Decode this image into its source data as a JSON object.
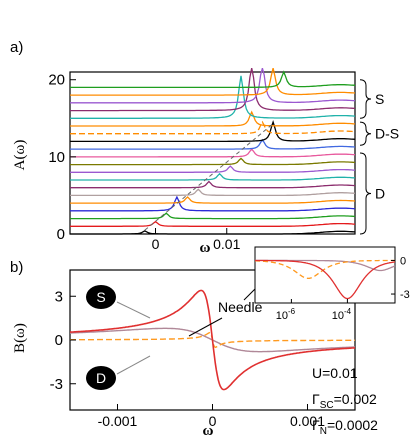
{
  "chart_data": [
    {
      "type": "line",
      "panel_label": "a)",
      "xlabel": "ω",
      "ylabel": "A(ω)",
      "xlim": [
        -0.012,
        0.028
      ],
      "ylim": [
        0,
        21
      ],
      "x_ticks": [
        {
          "value": 0,
          "label": "0"
        },
        {
          "value": 0.01,
          "label": "0.01"
        }
      ],
      "y_ticks": [
        {
          "value": 0,
          "label": "0"
        },
        {
          "value": 10,
          "label": "10"
        },
        {
          "value": 20,
          "label": "20"
        }
      ],
      "grid": false,
      "brace_groups": [
        {
          "label": "S",
          "y_range": [
            15,
            20
          ]
        },
        {
          "label": "D-S",
          "y_range": [
            11.5,
            14.5
          ]
        },
        {
          "label": "D",
          "y_range": [
            0,
            10.5
          ]
        }
      ],
      "series": [
        {
          "offset": 0,
          "peak_x": -0.0015,
          "height": 0.4,
          "color": "#000000"
        },
        {
          "offset": 1,
          "peak_x": 0.0,
          "height": 0.6,
          "color": "#e41a1c"
        },
        {
          "offset": 2,
          "peak_x": 0.0015,
          "height": 0.7,
          "color": "#1f9e1f"
        },
        {
          "offset": 3,
          "peak_x": 0.003,
          "height": 1.8,
          "color": "#2b2bd6"
        },
        {
          "offset": 4,
          "peak_x": 0.0045,
          "height": 0.8,
          "color": "#ff8c00"
        },
        {
          "offset": 5,
          "peak_x": 0.006,
          "height": 0.8,
          "color": "#b0a0a0"
        },
        {
          "offset": 6,
          "peak_x": 0.0075,
          "height": 0.8,
          "color": "#8c2d6e"
        },
        {
          "offset": 7,
          "peak_x": 0.009,
          "height": 0.8,
          "color": "#20b2aa"
        },
        {
          "offset": 8,
          "peak_x": 0.0105,
          "height": 0.8,
          "color": "#9b59d0"
        },
        {
          "offset": 9,
          "peak_x": 0.012,
          "height": 0.8,
          "color": "#7a7a00"
        },
        {
          "offset": 10,
          "peak_x": 0.0135,
          "height": 1.0,
          "color": "#e85a9e"
        },
        {
          "offset": 11,
          "peak_x": 0.015,
          "height": 1.2,
          "color": "#4169e1"
        },
        {
          "offset": 12,
          "peak_x": 0.0165,
          "height": 2.5,
          "color": "#000000"
        },
        {
          "offset": 13,
          "peak_x": 0.015,
          "height": 1.5,
          "color": "#ff8c00",
          "dashed": true
        },
        {
          "offset": 14,
          "peak_x": 0.0135,
          "height": 1.8,
          "color": "#ff8c00"
        },
        {
          "offset": 15,
          "peak_x": 0.012,
          "height": 5.5,
          "color": "#20b2aa"
        },
        {
          "offset": 16,
          "peak_x": 0.0135,
          "height": 6.0,
          "color": "#8c2d6e"
        },
        {
          "offset": 17,
          "peak_x": 0.015,
          "height": 5.0,
          "color": "#9b59d0"
        },
        {
          "offset": 18,
          "peak_x": 0.0165,
          "height": 3.5,
          "color": "#ff8c00"
        },
        {
          "offset": 19,
          "peak_x": 0.018,
          "height": 2.0,
          "color": "#1f9e1f"
        }
      ]
    },
    {
      "type": "line",
      "panel_label": "b)",
      "xlabel": "ω",
      "ylabel": "B(ω)",
      "xlim": [
        -0.0015,
        0.0015
      ],
      "ylim": [
        -4.8,
        4.8
      ],
      "x_ticks": [
        {
          "value": -0.001,
          "label": "-0.001"
        },
        {
          "value": 0,
          "label": "0"
        },
        {
          "value": 0.001,
          "label": "0.001"
        }
      ],
      "y_ticks": [
        {
          "value": 3,
          "label": "3"
        },
        {
          "value": 0,
          "label": "0"
        },
        {
          "value": -3,
          "label": "-3"
        }
      ],
      "grid": false,
      "series": [
        {
          "id": "S",
          "color": "#e03030",
          "amplitude": 3.4,
          "peak_x": 0.00012,
          "style": "solid"
        },
        {
          "id": "D",
          "color": "#b08898",
          "amplitude": 0.8,
          "peak_x": 0.0005,
          "style": "solid"
        },
        {
          "id": "D-S",
          "color": "#ff9a20",
          "amplitude": 0.5,
          "peak_x": 3e-05,
          "style": "dashed"
        }
      ],
      "annotations": {
        "needle": "Needle",
        "badge_s": "S",
        "badge_d": "D"
      },
      "parameters": {
        "u": "U=0.01",
        "gamma_sc_sym": "Γ",
        "gamma_sc_sub": "SC",
        "gamma_sc_val": "=0.002",
        "gamma_n_sym": "Γ",
        "gamma_n_sub": "N",
        "gamma_n_val": "=0.0002"
      },
      "inset": {
        "type": "line",
        "x_scale": "log",
        "x_ticks": [
          {
            "exp": -6,
            "base": "10",
            "sup": "-6"
          },
          {
            "exp": -4,
            "base": "10",
            "sup": "-4"
          }
        ],
        "y_ticks": [
          {
            "value": 0,
            "label": "0"
          },
          {
            "value": -3,
            "label": "-3"
          }
        ],
        "ylim": [
          -3.8,
          1.2
        ]
      }
    }
  ]
}
